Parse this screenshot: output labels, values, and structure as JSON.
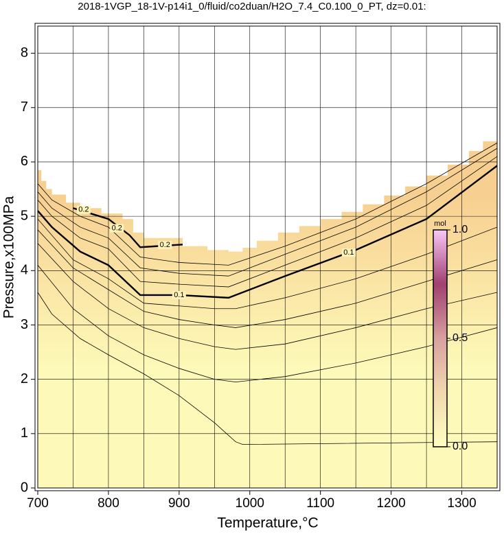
{
  "chart_data": {
    "type": "contour",
    "title": "2018-1VGP_18-1V-p14i1_0/fluid/co2duan/H2O_7.4_C0.100_0_PT, dz=0.01:",
    "x_label": "Temperature,°C",
    "y_label": "Pressure,x100MPa",
    "xlim": [
      700,
      1350
    ],
    "ylim": [
      0,
      8.5
    ],
    "xticks": [
      700,
      800,
      900,
      1000,
      1100,
      1200,
      1300
    ],
    "yticks": [
      0,
      1,
      2,
      3,
      4,
      5,
      6,
      7,
      8
    ],
    "xgrid": [
      750,
      800,
      850,
      900,
      950,
      1000,
      1050,
      1100,
      1150,
      1200,
      1250,
      1300
    ],
    "grid": true,
    "fill_colors": [
      "#fdf9b8",
      "#f7cf90"
    ],
    "boundary": {
      "x": [
        700,
        700,
        705,
        705,
        712,
        712,
        720,
        720,
        740,
        740,
        760,
        760,
        790,
        790,
        820,
        820,
        835,
        835,
        850,
        850,
        905,
        905,
        940,
        940,
        970,
        970,
        990,
        990,
        1010,
        1010,
        1040,
        1040,
        1070,
        1070,
        1100,
        1100,
        1130,
        1130,
        1160,
        1160,
        1190,
        1190,
        1220,
        1220,
        1250,
        1250,
        1280,
        1280,
        1310,
        1310,
        1330,
        1330,
        1350,
        1350
      ],
      "y": [
        0,
        5.85,
        5.85,
        5.65,
        5.65,
        5.5,
        5.5,
        5.4,
        5.4,
        5.25,
        5.25,
        5.15,
        5.15,
        5.05,
        5.05,
        4.95,
        4.95,
        4.7,
        4.7,
        4.6,
        4.6,
        4.45,
        4.45,
        4.38,
        4.38,
        4.35,
        4.35,
        4.42,
        4.42,
        4.55,
        4.55,
        4.7,
        4.7,
        4.82,
        4.82,
        4.95,
        4.95,
        5.08,
        5.08,
        5.22,
        5.22,
        5.38,
        5.38,
        5.55,
        5.55,
        5.75,
        5.75,
        5.95,
        5.95,
        6.2,
        6.2,
        6.38,
        6.38,
        0
      ]
    },
    "contours": [
      {
        "level": 0.01,
        "x": [
          700,
          720,
          760,
          800,
          850,
          900,
          950,
          980,
          990,
          1350
        ],
        "y": [
          3.6,
          3.2,
          2.75,
          2.45,
          2.1,
          1.7,
          1.2,
          0.85,
          0.8,
          0.85
        ]
      },
      {
        "level": 0.02,
        "x": [
          700,
          750,
          800,
          850,
          900,
          950,
          980,
          1050,
          1150,
          1250,
          1350
        ],
        "y": [
          4.1,
          3.3,
          2.8,
          2.45,
          2.2,
          2.0,
          1.95,
          2.05,
          2.3,
          2.6,
          2.95
        ]
      },
      {
        "level": 0.04,
        "x": [
          700,
          750,
          800,
          850,
          900,
          950,
          980,
          1050,
          1150,
          1250,
          1350
        ],
        "y": [
          4.5,
          3.8,
          3.3,
          2.95,
          2.75,
          2.6,
          2.55,
          2.65,
          2.95,
          3.3,
          3.6
        ]
      },
      {
        "level": 0.06,
        "x": [
          700,
          750,
          800,
          850,
          900,
          950,
          980,
          1050,
          1150,
          1250,
          1350
        ],
        "y": [
          4.75,
          4.05,
          3.65,
          3.25,
          3.1,
          3.0,
          2.95,
          3.1,
          3.4,
          3.8,
          4.2
        ]
      },
      {
        "level": 0.08,
        "x": [
          700,
          750,
          800,
          850,
          900,
          950,
          980,
          1050,
          1150,
          1250,
          1350
        ],
        "y": [
          4.95,
          4.2,
          3.85,
          3.4,
          3.35,
          3.3,
          3.3,
          3.5,
          3.85,
          4.3,
          4.8
        ]
      },
      {
        "level": 0.1,
        "x": [
          700,
          720,
          760,
          800,
          845,
          900,
          970,
          1050,
          1150,
          1250,
          1350
        ],
        "y": [
          5.1,
          4.8,
          4.35,
          4.1,
          3.55,
          3.55,
          3.5,
          3.9,
          4.38,
          4.95,
          5.93
        ]
      },
      {
        "level": 0.12,
        "x": [
          700,
          720,
          760,
          800,
          845,
          900,
          970,
          1050,
          1150,
          1250,
          1350
        ],
        "y": [
          5.3,
          5.0,
          4.6,
          4.4,
          3.8,
          3.75,
          3.7,
          4.1,
          4.6,
          5.2,
          6.1
        ]
      },
      {
        "level": 0.14,
        "x": [
          700,
          720,
          760,
          800,
          845,
          900,
          970,
          1050,
          1150,
          1250,
          1350
        ],
        "y": [
          5.45,
          5.15,
          4.8,
          4.6,
          4.05,
          3.95,
          3.9,
          4.3,
          4.8,
          5.45,
          6.25
        ]
      },
      {
        "level": 0.16,
        "x": [
          700,
          720,
          760,
          800,
          845,
          900,
          970,
          1050,
          1150,
          1250,
          1350
        ],
        "y": [
          5.6,
          5.3,
          5.0,
          4.8,
          4.25,
          4.15,
          4.1,
          4.45,
          4.95,
          5.6,
          6.35
        ]
      },
      {
        "level": 0.2,
        "x": [
          750,
          800,
          830,
          845,
          905
        ],
        "y": [
          5.15,
          4.95,
          4.65,
          4.43,
          4.48
        ]
      }
    ],
    "thick_levels": [
      0.1,
      0.2
    ],
    "contour_labels": [
      {
        "level": 0.1,
        "x": 900,
        "y": 3.55
      },
      {
        "level": 0.1,
        "x": 1140,
        "y": 4.33
      },
      {
        "level": 0.2,
        "x": 812,
        "y": 4.78
      },
      {
        "level": 0.2,
        "x": 880,
        "y": 4.47
      },
      {
        "level": 0.2,
        "x": 765,
        "y": 5.12
      }
    ],
    "colorbar": {
      "label": "mol",
      "lim": [
        0,
        1
      ],
      "ticks": [
        {
          "value": 0,
          "label": "0.0"
        },
        {
          "value": 0.5,
          "label": "0.5"
        },
        {
          "value": 1,
          "label": "1.0"
        }
      ],
      "colors": [
        "#ffffc0",
        "#f2d8b0",
        "#d8a0a0",
        "#a04070",
        "#f8c8f8"
      ]
    }
  }
}
